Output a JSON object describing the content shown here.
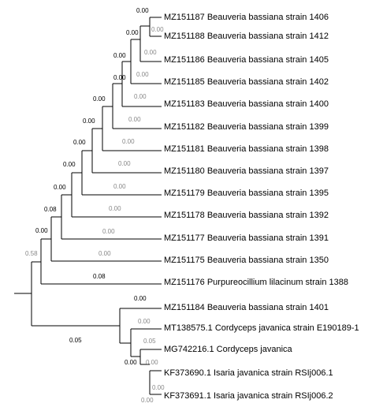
{
  "tree": {
    "taxa": [
      "MZ151187 Beauveria bassiana strain 1406",
      "MZ151188 Beauveria bassiana strain 1412",
      "MZ151186 Beauveria bassiana strain 1405",
      "MZ151185 Beauveria bassiana strain 1402",
      "MZ151183 Beauveria bassiana strain 1400",
      "MZ151182 Beauveria bassiana strain 1399",
      "MZ151181 Beauveria bassiana strain 1398",
      "MZ151180 Beauveria bassiana strain 1397",
      "MZ151179 Beauveria bassiana strain 1395",
      "MZ151178 Beauveria bassiana strain 1392",
      "MZ151177 Beauveria bassiana strain 1391",
      "MZ151175 Beauveria bassiana strain 1350",
      "MZ151176 Purpureocillium lilacinum strain 1388",
      "MZ151184 Beauveria bassiana strain 1401",
      "MT138575.1 Cordyceps javanica strain E190189-1",
      "MG742216.1 Cordyceps javanica",
      "KF373690.1 Isaria javanica strain RSIj006.1",
      "KF373691.1 Isaria javanica strain RSIj006.2"
    ],
    "branch_lengths": {
      "tip_1406": "0.00",
      "tip_1412": "0.00",
      "node_1406_1412": "0.00",
      "tip_1405": "0.00",
      "node_1405": "0.00",
      "tip_1402": "0.00",
      "node_1402": "0.00",
      "tip_1400": "0.00",
      "node_1400": "0.00",
      "tip_1399": "0.00",
      "node_1399": "0.00",
      "tip_1398": "0.00",
      "node_1398": "0.00",
      "tip_1397": "0.00",
      "node_1397": "0.00",
      "tip_1395": "0.00",
      "node_1395": "0.00",
      "tip_1392": "0.00",
      "node_1392": "0.08",
      "tip_1391": "0.00",
      "node_1391": "0.00",
      "tip_1350": "0.00",
      "tip_1388": "0.08",
      "node_beauveria": "0.58",
      "tip_1401": "0.05",
      "tip_E190189": "0.00",
      "tip_MG742216": "0.00",
      "node_javanica": "0.05",
      "tip_RSIj006_1": "0.00",
      "tip_RSIj006_2": "0.00",
      "node_rsij": "0.00",
      "node_rsij_inner": "0.00"
    },
    "colors": {
      "branch": "#000000",
      "label_dark": "#000000",
      "label_grey": "#888888"
    }
  }
}
